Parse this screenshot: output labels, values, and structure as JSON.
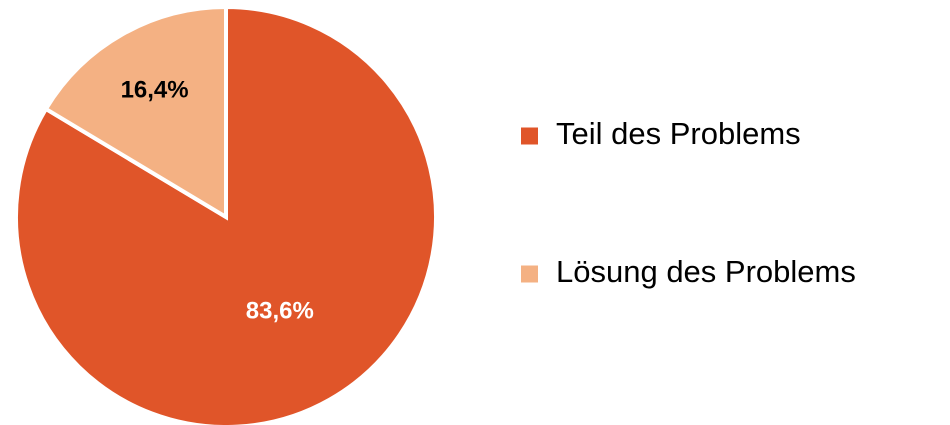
{
  "chart_data": {
    "type": "pie",
    "title": "",
    "start_angle_deg": 0,
    "direction": "clockwise",
    "slices": [
      {
        "label": "Teil des Problems",
        "value": 83.6,
        "value_label": "83,6%",
        "color": "#E05529",
        "label_color": "#ffffff"
      },
      {
        "label": "Lösung des Problems",
        "value": 16.4,
        "value_label": "16,4%",
        "color": "#F4B183",
        "label_color": "#000000"
      }
    ],
    "legend": {
      "position": "right",
      "items": [
        "Teil des Problems",
        "Lösung des Problems"
      ]
    },
    "slice_border_color": "#ffffff"
  }
}
